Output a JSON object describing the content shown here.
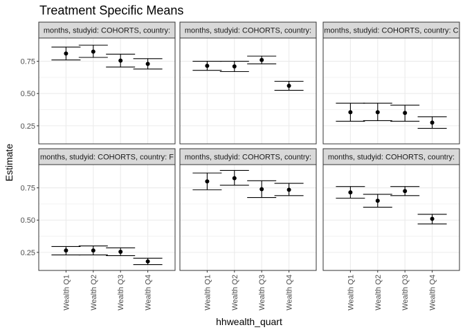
{
  "chart_data": {
    "type": "scatter",
    "title": "Treatment Specific Means",
    "xlabel": "hhwealth_quart",
    "ylabel": "Estimate",
    "categories": [
      "Wealth Q1",
      "Wealth Q2",
      "Wealth Q3",
      "Wealth Q4"
    ],
    "ylim": [
      0.11,
      0.93
    ],
    "yticks": [
      0.25,
      0.5,
      0.75
    ],
    "ytick_labels": [
      "0.25",
      "0.50",
      "0.75"
    ],
    "grid": true,
    "error_bars": true,
    "panels": [
      {
        "strip": "months, studyid: COHORTS, country: ",
        "points": [
          {
            "estimate": 0.81,
            "lower": 0.76,
            "upper": 0.86
          },
          {
            "estimate": 0.825,
            "lower": 0.78,
            "upper": 0.875
          },
          {
            "estimate": 0.755,
            "lower": 0.705,
            "upper": 0.805
          },
          {
            "estimate": 0.73,
            "lower": 0.69,
            "upper": 0.77
          }
        ]
      },
      {
        "strip": "months, studyid: COHORTS, country: ",
        "points": [
          {
            "estimate": 0.715,
            "lower": 0.68,
            "upper": 0.75
          },
          {
            "estimate": 0.71,
            "lower": 0.67,
            "upper": 0.75
          },
          {
            "estimate": 0.76,
            "lower": 0.73,
            "upper": 0.79
          },
          {
            "estimate": 0.56,
            "lower": 0.525,
            "upper": 0.595
          }
        ]
      },
      {
        "strip": "months, studyid: COHORTS, country: C",
        "points": [
          {
            "estimate": 0.355,
            "lower": 0.285,
            "upper": 0.425
          },
          {
            "estimate": 0.355,
            "lower": 0.29,
            "upper": 0.425
          },
          {
            "estimate": 0.35,
            "lower": 0.285,
            "upper": 0.41
          },
          {
            "estimate": 0.275,
            "lower": 0.23,
            "upper": 0.32
          }
        ]
      },
      {
        "strip": "months, studyid: COHORTS, country: F",
        "points": [
          {
            "estimate": 0.265,
            "lower": 0.23,
            "upper": 0.295
          },
          {
            "estimate": 0.265,
            "lower": 0.23,
            "upper": 0.3
          },
          {
            "estimate": 0.255,
            "lower": 0.225,
            "upper": 0.285
          },
          {
            "estimate": 0.18,
            "lower": 0.155,
            "upper": 0.205
          }
        ]
      },
      {
        "strip": "months, studyid: COHORTS, country: ",
        "points": [
          {
            "estimate": 0.8,
            "lower": 0.735,
            "upper": 0.865
          },
          {
            "estimate": 0.825,
            "lower": 0.77,
            "upper": 0.885
          },
          {
            "estimate": 0.74,
            "lower": 0.675,
            "upper": 0.805
          },
          {
            "estimate": 0.735,
            "lower": 0.69,
            "upper": 0.785
          }
        ]
      },
      {
        "strip": "months, studyid: COHORTS, country: ",
        "points": [
          {
            "estimate": 0.715,
            "lower": 0.67,
            "upper": 0.76
          },
          {
            "estimate": 0.65,
            "lower": 0.6,
            "upper": 0.7
          },
          {
            "estimate": 0.725,
            "lower": 0.69,
            "upper": 0.76
          },
          {
            "estimate": 0.51,
            "lower": 0.47,
            "upper": 0.545
          }
        ]
      }
    ]
  },
  "colors": {
    "panel_background": "#ffffff",
    "panel_border": "#333333",
    "strip_background": "#d9d9d9",
    "gridline": "#ebebeb",
    "marks": "#000000",
    "tick_text": "#4d4d4d"
  }
}
